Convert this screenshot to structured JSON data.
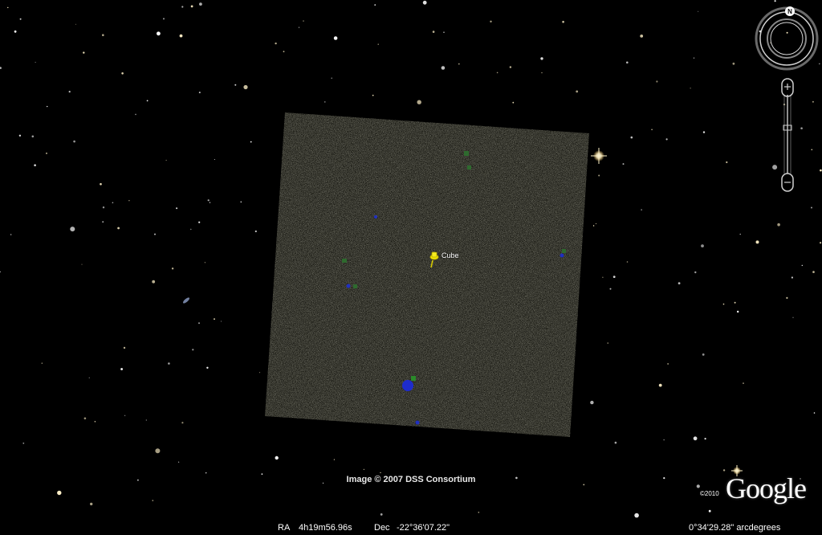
{
  "placemark": {
    "label": "Cube",
    "icon": "yellow-pushpin-icon",
    "color": "#f2e600"
  },
  "attribution": {
    "text": "Image © 2007 DSS Consortium"
  },
  "branding": {
    "copyright_year": "©2010",
    "logo_text": "Google"
  },
  "status": {
    "ra_label": "RA",
    "ra_value": "4h19m56.96s",
    "dec_label": "Dec",
    "dec_value": "-22°36'07.22\"",
    "scale_value": "0°34'29.28\" arcdegrees"
  },
  "navigation": {
    "compass_north": "N",
    "compass_icon": "compass-ring-icon",
    "zoom_in_icon": "plus-icon",
    "zoom_out_icon": "minus-icon"
  },
  "colors": {
    "sky": "#000000",
    "star_warm": "#fff1c8",
    "star_white": "#ffffff",
    "tile_base": "#1a1a14",
    "tile_noise": "#5a5a46"
  }
}
